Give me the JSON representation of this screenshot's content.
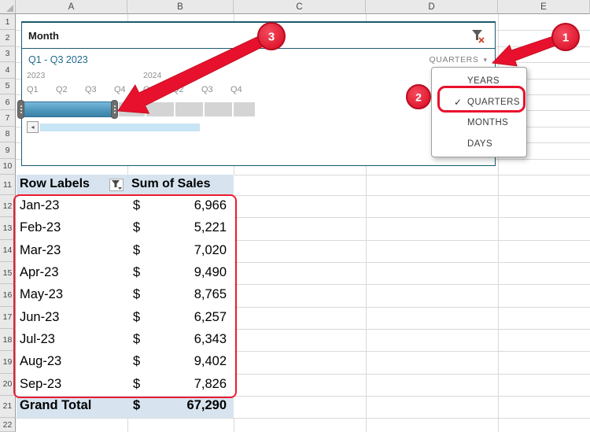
{
  "sheet": {
    "columns": [
      "A",
      "B",
      "C",
      "D",
      "E"
    ],
    "rows": [
      "1",
      "2",
      "3",
      "4",
      "5",
      "6",
      "7",
      "8",
      "9",
      "10",
      "11",
      "12",
      "13",
      "14",
      "15",
      "16",
      "17",
      "18",
      "19",
      "20",
      "21",
      "22"
    ]
  },
  "timeline": {
    "title": "Month",
    "clear_filter_icon": "funnel-with-red-x",
    "selected_range": "Q1 - Q3 2023",
    "level_selector": {
      "label": "QUARTERS",
      "arrow_icon": "▾"
    },
    "years": [
      {
        "label": "2023",
        "quarters": [
          {
            "label": "Q1",
            "selected": true
          },
          {
            "label": "Q2",
            "selected": true
          },
          {
            "label": "Q3",
            "selected": true
          },
          {
            "label": "Q4",
            "selected": false
          }
        ]
      },
      {
        "label": "2024",
        "quarters": [
          {
            "label": "Q1",
            "selected": false
          },
          {
            "label": "Q2",
            "selected": false
          },
          {
            "label": "Q3",
            "selected": false
          },
          {
            "label": "Q4",
            "selected": false
          }
        ]
      }
    ],
    "scrollbar": {
      "left_arrow_icon": "◂"
    }
  },
  "level_menu": {
    "check_icon": "✓",
    "items": [
      {
        "label": "YEARS",
        "checked": false
      },
      {
        "label": "QUARTERS",
        "checked": true
      },
      {
        "label": "MONTHS",
        "checked": false
      },
      {
        "label": "DAYS",
        "checked": false
      }
    ]
  },
  "pivot": {
    "header": {
      "row_labels": "Row Labels",
      "values": "Sum of Sales",
      "filter_icon": "funnel"
    },
    "rows": [
      {
        "month": "Jan-23",
        "currency": "$",
        "value": "6,966"
      },
      {
        "month": "Feb-23",
        "currency": "$",
        "value": "5,221"
      },
      {
        "month": "Mar-23",
        "currency": "$",
        "value": "7,020"
      },
      {
        "month": "Apr-23",
        "currency": "$",
        "value": "9,490"
      },
      {
        "month": "May-23",
        "currency": "$",
        "value": "8,765"
      },
      {
        "month": "Jun-23",
        "currency": "$",
        "value": "6,257"
      },
      {
        "month": "Jul-23",
        "currency": "$",
        "value": "6,343"
      },
      {
        "month": "Aug-23",
        "currency": "$",
        "value": "9,402"
      },
      {
        "month": "Sep-23",
        "currency": "$",
        "value": "7,826"
      }
    ],
    "grand_total": {
      "label": "Grand Total",
      "currency": "$",
      "value": "67,290"
    }
  },
  "annotations": {
    "steps": [
      "1",
      "2",
      "3"
    ]
  },
  "colors": {
    "accent_red": "#E8112D",
    "timeline_teal": "#1C5A70",
    "selection_blue": "#4E97BC",
    "band_blue": "#D7E4F0",
    "tile_gray": "#D4D4D4"
  }
}
